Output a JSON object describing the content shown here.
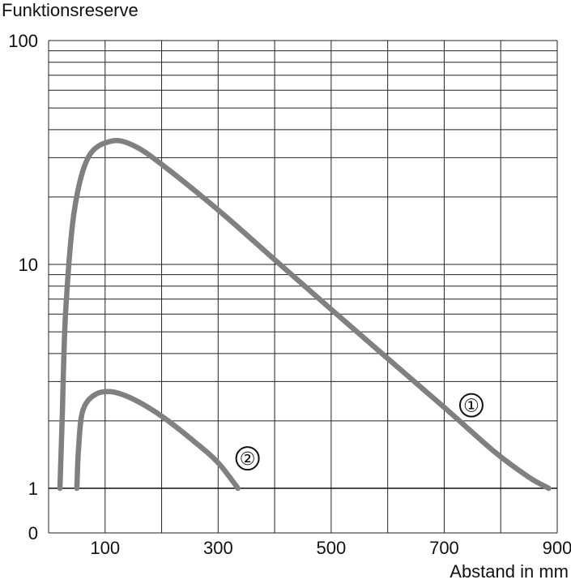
{
  "chart_data": {
    "type": "line",
    "ylabel": "Funktionsreserve",
    "xlabel": "Abstand in mm",
    "y_scale": "log",
    "ylim": [
      1,
      100
    ],
    "xlim": [
      0,
      900
    ],
    "x_ticks": [
      100,
      300,
      500,
      700,
      900
    ],
    "y_ticks": [
      {
        "value": 100,
        "label": "100"
      },
      {
        "value": 10,
        "label": "10"
      },
      {
        "value": 1,
        "label": "1"
      }
    ],
    "below_axis_label": "0",
    "grid": true,
    "series": [
      {
        "name": "①",
        "label_at": [
          748,
          2.35
        ],
        "points": [
          [
            20,
            1
          ],
          [
            24,
            2
          ],
          [
            30,
            6
          ],
          [
            45,
            17
          ],
          [
            70,
            30
          ],
          [
            110,
            35.5
          ],
          [
            150,
            34
          ],
          [
            200,
            28
          ],
          [
            300,
            17.5
          ],
          [
            400,
            10.5
          ],
          [
            500,
            6.3
          ],
          [
            600,
            3.8
          ],
          [
            700,
            2.3
          ],
          [
            790,
            1.45
          ],
          [
            850,
            1.12
          ],
          [
            885,
            1
          ]
        ]
      },
      {
        "name": "②",
        "label_at": [
          352,
          1.36
        ],
        "points": [
          [
            50,
            1
          ],
          [
            53,
            1.5
          ],
          [
            60,
            2.2
          ],
          [
            80,
            2.6
          ],
          [
            110,
            2.7
          ],
          [
            150,
            2.5
          ],
          [
            200,
            2.1
          ],
          [
            260,
            1.6
          ],
          [
            300,
            1.3
          ],
          [
            335,
            1
          ]
        ]
      }
    ],
    "colors": {
      "curve": "#808080",
      "grid": "#222222",
      "axis": "#111111"
    }
  }
}
